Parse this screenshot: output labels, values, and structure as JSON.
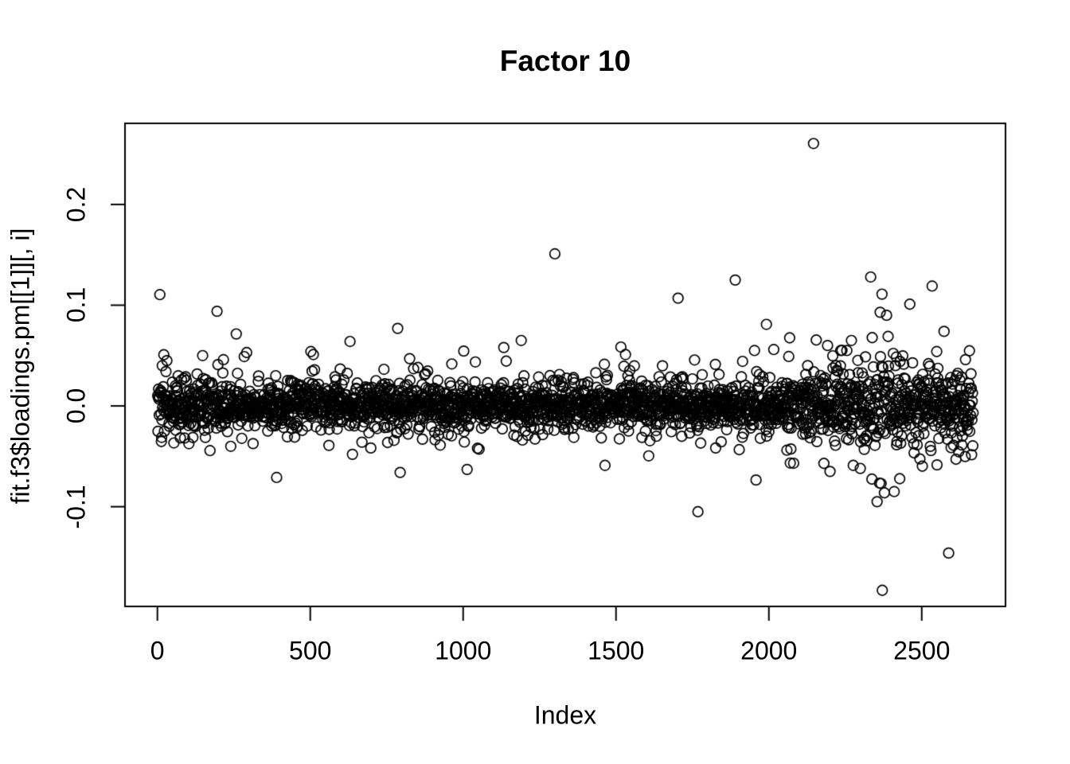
{
  "figure": {
    "background_color": "#ffffff",
    "foreground_color": "#000000"
  },
  "chart_data": {
    "type": "scatter",
    "title": "Factor 10",
    "xlabel": "Index",
    "ylabel": "fit.f3$loadings.pm[[1]][, i]",
    "x_ticks": [
      0,
      500,
      1000,
      1500,
      2000,
      2500
    ],
    "x_tick_labels": [
      "0",
      "500",
      "1000",
      "1500",
      "2000",
      "2500"
    ],
    "y_ticks": [
      -0.1,
      0.0,
      0.1,
      0.2
    ],
    "y_tick_labels": [
      "-0.1",
      "0.0",
      "0.1",
      "0.2"
    ],
    "xlim": [
      -106,
      2774
    ],
    "ylim": [
      -0.199,
      0.2805
    ],
    "grid": false,
    "legend": null,
    "n_points": 2668,
    "marker": {
      "shape": "open-circle",
      "radius_px": 6.3,
      "stroke_px": 1.7,
      "color": "#000000"
    },
    "band": {
      "description": "Dense horizontal band of open circles centered on 0: solid core ~ -0.025..0.022, fringe to about -0.055..0.05; spread slightly wider for index < 160, wider for index > 2050, widest around index 2300-2460.",
      "seed": 42,
      "base_sigma": 0.0105,
      "mixture": [
        {
          "prob": 0.8,
          "sigma_scale": 1.0
        },
        {
          "prob": 0.165,
          "sigma_scale": 1.8
        },
        {
          "prob": 0.035,
          "sigma_scale": 2.7
        }
      ],
      "region_scales": [
        {
          "from": 1,
          "to": 160,
          "scale": 1.3
        },
        {
          "from": 2050,
          "to": 2668,
          "scale": 1.45
        },
        {
          "from": 2300,
          "to": 2460,
          "scale": 1.75
        }
      ],
      "clamp_hi": 0.048,
      "clamp_lo": -0.053
    },
    "outliers": [
      [
        8,
        0.1105
      ],
      [
        16,
        0.04
      ],
      [
        31,
        0.045
      ],
      [
        148,
        0.05
      ],
      [
        195,
        0.094
      ],
      [
        258,
        0.0715
      ],
      [
        284,
        0.049
      ],
      [
        292,
        0.053
      ],
      [
        502,
        0.054
      ],
      [
        510,
        0.051
      ],
      [
        630,
        0.064
      ],
      [
        786,
        0.077
      ],
      [
        825,
        0.047
      ],
      [
        1002,
        0.0545
      ],
      [
        1133,
        0.058
      ],
      [
        1190,
        0.065
      ],
      [
        1300,
        0.151
      ],
      [
        1516,
        0.0585
      ],
      [
        1531,
        0.051
      ],
      [
        1703,
        0.107
      ],
      [
        1890,
        0.125
      ],
      [
        1953,
        0.055
      ],
      [
        1992,
        0.081
      ],
      [
        2016,
        0.056
      ],
      [
        2146,
        0.2605
      ],
      [
        2192,
        0.06
      ],
      [
        2255,
        0.055
      ],
      [
        2270,
        0.065
      ],
      [
        2333,
        0.128
      ],
      [
        2364,
        0.093
      ],
      [
        2370,
        0.111
      ],
      [
        2385,
        0.09
      ],
      [
        2390,
        0.069
      ],
      [
        2461,
        0.101
      ],
      [
        2534,
        0.119
      ],
      [
        2549,
        0.054
      ],
      [
        2573,
        0.074
      ],
      [
        2643,
        0.046
      ],
      [
        2661,
        0.032
      ],
      [
        390,
        -0.071
      ],
      [
        638,
        -0.048
      ],
      [
        794,
        -0.066
      ],
      [
        1013,
        -0.063
      ],
      [
        1047,
        -0.042
      ],
      [
        1464,
        -0.059
      ],
      [
        1768,
        -0.105
      ],
      [
        1958,
        -0.0735
      ],
      [
        2180,
        -0.057
      ],
      [
        2200,
        -0.065
      ],
      [
        2276,
        -0.059
      ],
      [
        2299,
        -0.062
      ],
      [
        2354,
        -0.095
      ],
      [
        2367,
        -0.077
      ],
      [
        2371,
        -0.183
      ],
      [
        2410,
        -0.085
      ],
      [
        2588,
        -0.146
      ]
    ]
  }
}
